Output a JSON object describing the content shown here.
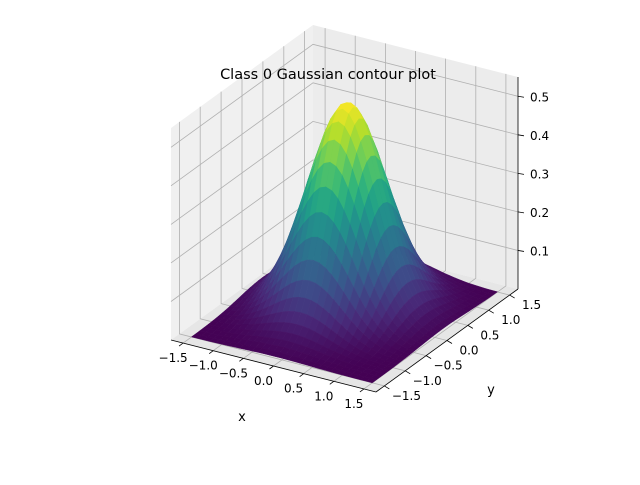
{
  "chart_data": {
    "type": "surface3d",
    "title": "Class 0 Gaussian contour plot",
    "xlabel": "x",
    "ylabel": "y",
    "zlabel": "",
    "xlim": [
      -1.7,
      1.7
    ],
    "ylim": [
      -1.7,
      1.7
    ],
    "zlim": [
      0.0,
      0.55
    ],
    "x_ticks": [
      -1.5,
      -1.0,
      -0.5,
      0.0,
      0.5,
      1.0,
      1.5
    ],
    "y_ticks": [
      -1.5,
      -1.0,
      -0.5,
      0.0,
      0.5,
      1.0,
      1.5
    ],
    "z_ticks": [
      0.1,
      0.2,
      0.3,
      0.4,
      0.5
    ],
    "x_tick_labels": [
      "−1.5",
      "−1.0",
      "−0.5",
      "0.0",
      "0.5",
      "1.0",
      "1.5"
    ],
    "y_tick_labels": [
      "−1.5",
      "−1.0",
      "−0.5",
      "0.0",
      "0.5",
      "1.0",
      "1.5"
    ],
    "z_tick_labels": [
      "0.1",
      "0.2",
      "0.3",
      "0.4",
      "0.5"
    ],
    "surface": {
      "function": "bivariate gaussian",
      "mean": [
        -0.1,
        0.2
      ],
      "std": [
        0.55,
        0.55
      ],
      "peak": 0.53,
      "colormap": "viridis",
      "grid_resolution": 30
    },
    "grid": true,
    "pane_color": "#f2f2f2",
    "grid_color": "#b0b0b0"
  }
}
